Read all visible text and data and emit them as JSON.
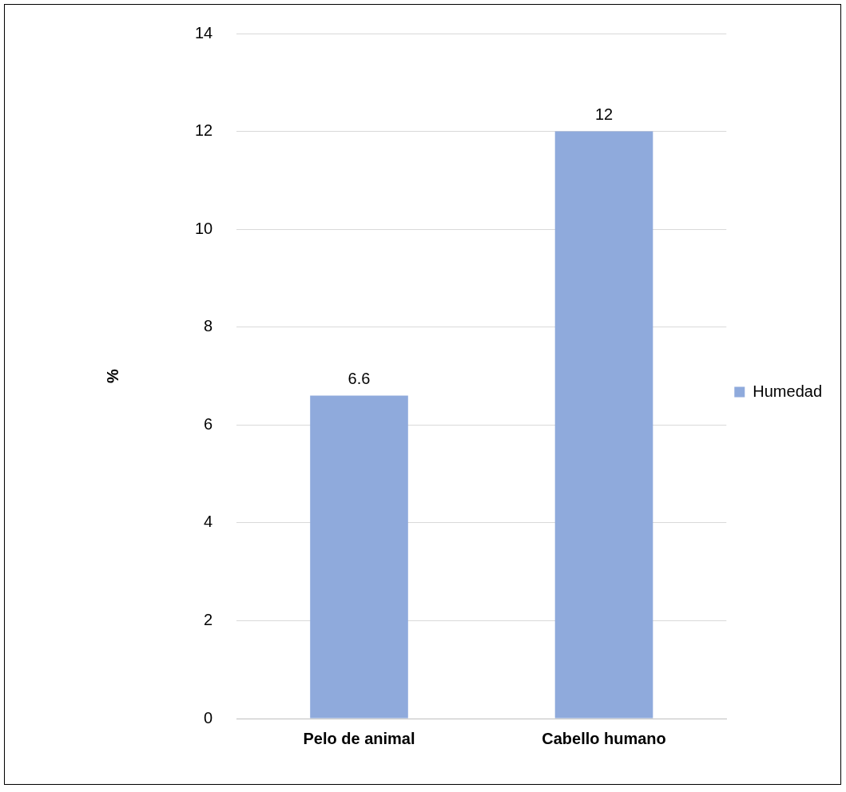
{
  "chart_data": {
    "type": "bar",
    "categories": [
      "Pelo de animal",
      "Cabello humano"
    ],
    "series": [
      {
        "name": "Humedad",
        "color": "#8faadc",
        "values": [
          6.6,
          12
        ]
      }
    ],
    "ylabel": "%",
    "ylim": [
      0,
      14
    ],
    "yticks": [
      0,
      2,
      4,
      6,
      8,
      10,
      12,
      14
    ],
    "grid": "y",
    "legend": "right",
    "data_labels": true
  }
}
